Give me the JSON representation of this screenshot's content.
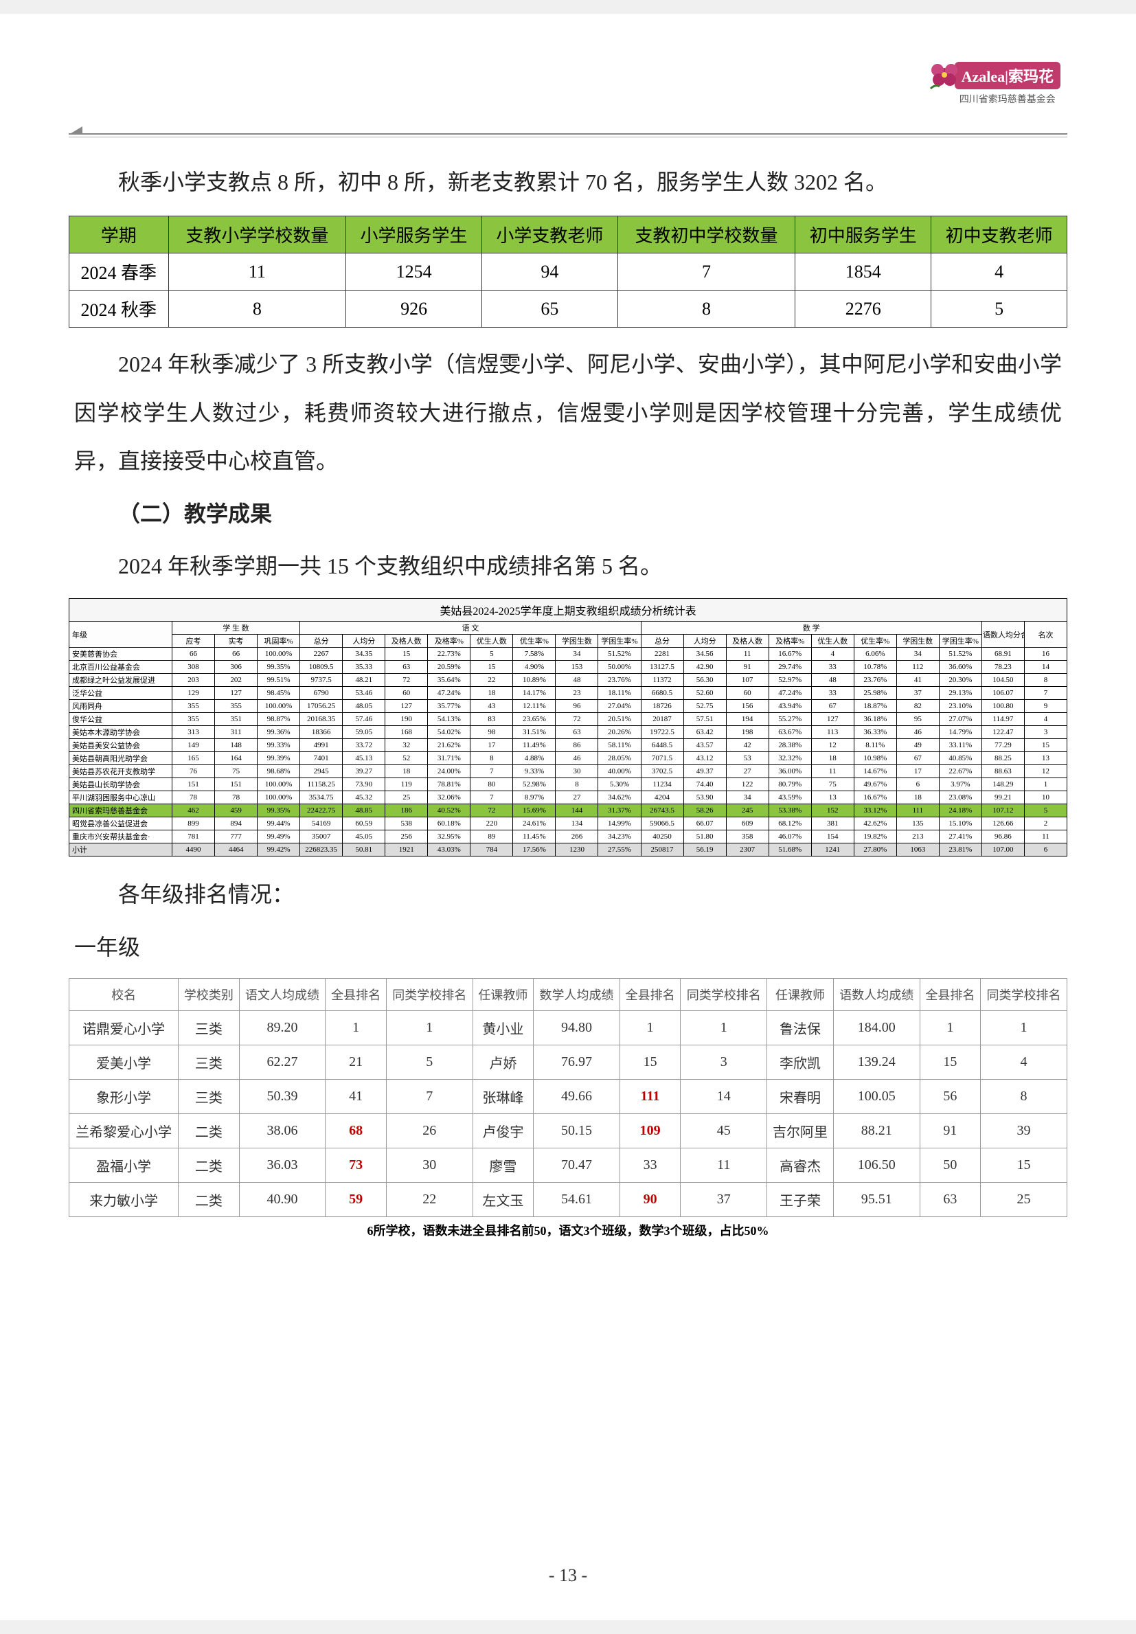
{
  "logo": {
    "brand": "Azalea|索玛花",
    "org": "四川省索玛慈善基金会"
  },
  "para1": "秋季小学支教点 8 所，初中 8 所，新老支教累计 70 名，服务学生人数 3202 名。",
  "t1": {
    "headers": [
      "学期",
      "支教小学学校数量",
      "小学服务学生",
      "小学支教老师",
      "支教初中学校数量",
      "初中服务学生",
      "初中支教老师"
    ],
    "rows": [
      [
        "2024 春季",
        "11",
        "1254",
        "94",
        "7",
        "1854",
        "4"
      ],
      [
        "2024 秋季",
        "8",
        "926",
        "65",
        "8",
        "2276",
        "5"
      ]
    ]
  },
  "para2": "2024 年秋季减少了 3 所支教小学（信煜雯小学、阿尼小学、安曲小学），其中阿尼小学和安曲小学因学校学生人数过少，耗费师资较大进行撤点，信煜雯小学则是因学校管理十分完善，学生成绩优异，直接接受中心校直管。",
  "section2": "（二）教学成果",
  "para3": "2024 年秋季学期一共 15 个支教组织中成绩排名第 5 名。",
  "t2title": "美姑县2024-2025学年度上期支教组织成绩分析统计表",
  "t2": {
    "groupHeaders": [
      "年级",
      "学 生 数",
      "",
      "",
      "语 文",
      "",
      "",
      "",
      "",
      "",
      "数 学",
      "",
      "",
      "",
      "",
      "",
      "语数人均分合计",
      "名次"
    ],
    "subHeaders": [
      "",
      "应考",
      "实考",
      "巩固率%",
      "总分",
      "人均分",
      "及格人数",
      "及格率%",
      "优生人数",
      "优生率%",
      "学困生数",
      "学困生率%",
      "总分",
      "人均分",
      "及格人数",
      "及格率%",
      "优生人数",
      "优生率%",
      "学困生数",
      "学困生率%",
      "",
      ""
    ],
    "rows": [
      {
        "org": "安美慈善协会",
        "d": [
          "66",
          "66",
          "100.00%",
          "2267",
          "34.35",
          "15",
          "22.73%",
          "5",
          "7.58%",
          "34",
          "51.52%",
          "2281",
          "34.56",
          "11",
          "16.67%",
          "4",
          "6.06%",
          "34",
          "51.52%",
          "68.91",
          "16"
        ]
      },
      {
        "org": "北京百川公益基金会",
        "d": [
          "308",
          "306",
          "99.35%",
          "10809.5",
          "35.33",
          "63",
          "20.59%",
          "15",
          "4.90%",
          "153",
          "50.00%",
          "13127.5",
          "42.90",
          "91",
          "29.74%",
          "33",
          "10.78%",
          "112",
          "36.60%",
          "78.23",
          "14"
        ]
      },
      {
        "org": "成都绿之叶公益发展促进",
        "d": [
          "203",
          "202",
          "99.51%",
          "9737.5",
          "48.21",
          "72",
          "35.64%",
          "22",
          "10.89%",
          "48",
          "23.76%",
          "11372",
          "56.30",
          "107",
          "52.97%",
          "48",
          "23.76%",
          "41",
          "20.30%",
          "104.50",
          "8"
        ]
      },
      {
        "org": "泛华公益",
        "d": [
          "129",
          "127",
          "98.45%",
          "6790",
          "53.46",
          "60",
          "47.24%",
          "18",
          "14.17%",
          "23",
          "18.11%",
          "6680.5",
          "52.60",
          "60",
          "47.24%",
          "33",
          "25.98%",
          "37",
          "29.13%",
          "106.07",
          "7"
        ]
      },
      {
        "org": "风雨同舟",
        "d": [
          "355",
          "355",
          "100.00%",
          "17056.25",
          "48.05",
          "127",
          "35.77%",
          "43",
          "12.11%",
          "96",
          "27.04%",
          "18726",
          "52.75",
          "156",
          "43.94%",
          "67",
          "18.87%",
          "82",
          "23.10%",
          "100.80",
          "9"
        ]
      },
      {
        "org": "俊华公益",
        "d": [
          "355",
          "351",
          "98.87%",
          "20168.35",
          "57.46",
          "190",
          "54.13%",
          "83",
          "23.65%",
          "72",
          "20.51%",
          "20187",
          "57.51",
          "194",
          "55.27%",
          "127",
          "36.18%",
          "95",
          "27.07%",
          "114.97",
          "4"
        ]
      },
      {
        "org": "美姑本木源助学协会",
        "d": [
          "313",
          "311",
          "99.36%",
          "18366",
          "59.05",
          "168",
          "54.02%",
          "98",
          "31.51%",
          "63",
          "20.26%",
          "19722.5",
          "63.42",
          "198",
          "63.67%",
          "113",
          "36.33%",
          "46",
          "14.79%",
          "122.47",
          "3"
        ]
      },
      {
        "org": "美姑县美安公益协会",
        "d": [
          "149",
          "148",
          "99.33%",
          "4991",
          "33.72",
          "32",
          "21.62%",
          "17",
          "11.49%",
          "86",
          "58.11%",
          "6448.5",
          "43.57",
          "42",
          "28.38%",
          "12",
          "8.11%",
          "49",
          "33.11%",
          "77.29",
          "15"
        ]
      },
      {
        "org": "美姑县朝高阳光助学会",
        "d": [
          "165",
          "164",
          "99.39%",
          "7401",
          "45.13",
          "52",
          "31.71%",
          "8",
          "4.88%",
          "46",
          "28.05%",
          "7071.5",
          "43.12",
          "53",
          "32.32%",
          "18",
          "10.98%",
          "67",
          "40.85%",
          "88.25",
          "13"
        ]
      },
      {
        "org": "美姑县苏农花开支教助学",
        "d": [
          "76",
          "75",
          "98.68%",
          "2945",
          "39.27",
          "18",
          "24.00%",
          "7",
          "9.33%",
          "30",
          "40.00%",
          "3702.5",
          "49.37",
          "27",
          "36.00%",
          "11",
          "14.67%",
          "17",
          "22.67%",
          "88.63",
          "12"
        ]
      },
      {
        "org": "美姑县山长助学协会",
        "d": [
          "151",
          "151",
          "100.00%",
          "11158.25",
          "73.90",
          "119",
          "78.81%",
          "80",
          "52.98%",
          "8",
          "5.30%",
          "11234",
          "74.40",
          "122",
          "80.79%",
          "75",
          "49.67%",
          "6",
          "3.97%",
          "148.29",
          "1"
        ]
      },
      {
        "org": "平川湖羽困服务中心凉山",
        "d": [
          "78",
          "78",
          "100.00%",
          "3534.75",
          "45.32",
          "25",
          "32.06%",
          "7",
          "8.97%",
          "27",
          "34.62%",
          "4204",
          "53.90",
          "34",
          "43.59%",
          "13",
          "16.67%",
          "18",
          "23.08%",
          "99.21",
          "10"
        ]
      },
      {
        "org": "四川省索玛慈善基金会",
        "hl": true,
        "d": [
          "462",
          "459",
          "99.35%",
          "22422.75",
          "48.85",
          "186",
          "40.52%",
          "72",
          "15.69%",
          "144",
          "31.37%",
          "26743.5",
          "58.26",
          "245",
          "53.38%",
          "152",
          "33.12%",
          "111",
          "24.18%",
          "107.12",
          "5"
        ]
      },
      {
        "org": "昭觉县凉善公益促进会",
        "d": [
          "899",
          "894",
          "99.44%",
          "54169",
          "60.59",
          "538",
          "60.18%",
          "220",
          "24.61%",
          "134",
          "14.99%",
          "59066.5",
          "66.07",
          "609",
          "68.12%",
          "381",
          "42.62%",
          "135",
          "15.10%",
          "126.66",
          "2"
        ]
      },
      {
        "org": "重庆市兴安帮扶基金会·",
        "d": [
          "781",
          "777",
          "99.49%",
          "35007",
          "45.05",
          "256",
          "32.95%",
          "89",
          "11.45%",
          "266",
          "34.23%",
          "40250",
          "51.80",
          "358",
          "46.07%",
          "154",
          "19.82%",
          "213",
          "27.41%",
          "96.86",
          "11"
        ]
      },
      {
        "org": "小计",
        "gray": true,
        "d": [
          "4490",
          "4464",
          "99.42%",
          "226823.35",
          "50.81",
          "1921",
          "43.03%",
          "784",
          "17.56%",
          "1230",
          "27.55%",
          "250817",
          "56.19",
          "2307",
          "51.68%",
          "1241",
          "27.80%",
          "1063",
          "23.81%",
          "107.00",
          "6"
        ]
      }
    ]
  },
  "para4": "各年级排名情况：",
  "gradeHead": "一年级",
  "t3": {
    "headers": [
      "校名",
      "学校类别",
      "语文人均成绩",
      "全县排名",
      "同类学校排名",
      "任课教师",
      "数学人均成绩",
      "全县排名",
      "同类学校排名",
      "任课教师",
      "语数人均成绩",
      "全县排名",
      "同类学校排名"
    ],
    "rows": [
      {
        "c": [
          "诺鼎爱心小学",
          "三类",
          "89.20",
          "1",
          "1",
          "黄小业",
          "94.80",
          "1",
          "1",
          "鲁法保",
          "184.00",
          "1",
          "1"
        ],
        "red": []
      },
      {
        "c": [
          "爱美小学",
          "三类",
          "62.27",
          "21",
          "5",
          "卢娇",
          "76.97",
          "15",
          "3",
          "李欣凯",
          "139.24",
          "15",
          "4"
        ],
        "red": []
      },
      {
        "c": [
          "象形小学",
          "三类",
          "50.39",
          "41",
          "7",
          "张琳峰",
          "49.66",
          "111",
          "14",
          "宋春明",
          "100.05",
          "56",
          "8"
        ],
        "red": [
          7
        ]
      },
      {
        "c": [
          "兰希黎爱心小学",
          "二类",
          "38.06",
          "68",
          "26",
          "卢俊宇",
          "50.15",
          "109",
          "45",
          "吉尔阿里",
          "88.21",
          "91",
          "39"
        ],
        "red": [
          3,
          7
        ]
      },
      {
        "c": [
          "盈福小学",
          "二类",
          "36.03",
          "73",
          "30",
          "廖雪",
          "70.47",
          "33",
          "11",
          "高睿杰",
          "106.50",
          "50",
          "15"
        ],
        "red": [
          3
        ]
      },
      {
        "c": [
          "来力敏小学",
          "二类",
          "40.90",
          "59",
          "22",
          "左文玉",
          "54.61",
          "90",
          "37",
          "王子荣",
          "95.51",
          "63",
          "25"
        ],
        "red": [
          3,
          7
        ]
      }
    ],
    "footnote": "6所学校，语数未进全县排名前50，语文3个班级，数学3个班级，占比50%"
  },
  "pageNum": "- 13 -"
}
